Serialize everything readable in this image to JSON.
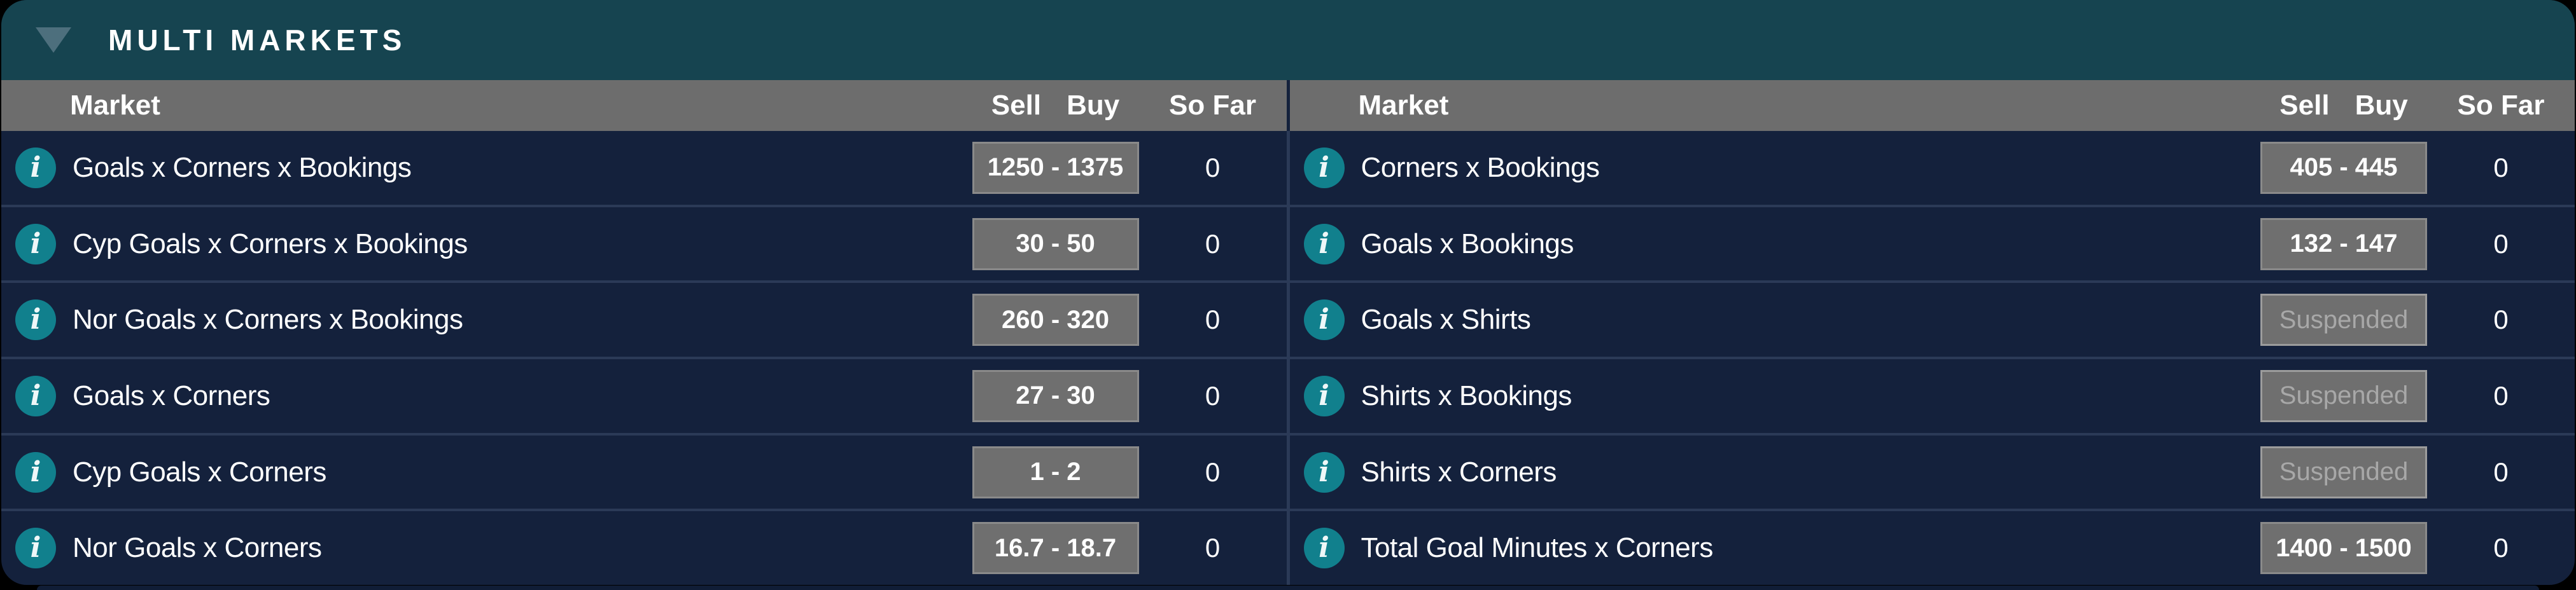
{
  "panel": {
    "title": "MULTI MARKETS"
  },
  "columns": {
    "market": "Market",
    "sell": "Sell",
    "buy": "Buy",
    "so_far": "So Far"
  },
  "info_icon_glyph": "i",
  "tables": [
    {
      "side": "left",
      "rows": [
        {
          "market": "Goals x Corners x Bookings",
          "price": "1250 - 1375",
          "status": "active",
          "so_far": "0"
        },
        {
          "market": "Cyp Goals x Corners x Bookings",
          "price": "30 - 50",
          "status": "active",
          "so_far": "0"
        },
        {
          "market": "Nor Goals x Corners x Bookings",
          "price": "260 - 320",
          "status": "active",
          "so_far": "0"
        },
        {
          "market": "Goals x Corners",
          "price": "27 - 30",
          "status": "active",
          "so_far": "0"
        },
        {
          "market": "Cyp Goals x Corners",
          "price": "1 - 2",
          "status": "active",
          "so_far": "0"
        },
        {
          "market": "Nor Goals x Corners",
          "price": "16.7 - 18.7",
          "status": "active",
          "so_far": "0"
        }
      ]
    },
    {
      "side": "right",
      "rows": [
        {
          "market": "Corners x Bookings",
          "price": "405 - 445",
          "status": "active",
          "so_far": "0"
        },
        {
          "market": "Goals x Bookings",
          "price": "132 - 147",
          "status": "active",
          "so_far": "0"
        },
        {
          "market": "Goals x Shirts",
          "price": "Suspended",
          "status": "suspended",
          "so_far": "0"
        },
        {
          "market": "Shirts x Bookings",
          "price": "Suspended",
          "status": "suspended",
          "so_far": "0"
        },
        {
          "market": "Shirts x Corners",
          "price": "Suspended",
          "status": "suspended",
          "so_far": "0"
        },
        {
          "market": "Total Goal Minutes x Corners",
          "price": "1400 - 1500",
          "status": "active",
          "so_far": "0"
        }
      ]
    }
  ],
  "colors": {
    "page_bg": "#000000",
    "teal_header": "#164450",
    "triangle": "#4d6f7d",
    "col_header_bg": "#6d6d6d",
    "row_bg": "#14213c",
    "divider": "#2b3a57",
    "info_bg": "#11808d",
    "btn_bg": "#6f6f6f",
    "btn_border": "#8a8a8a",
    "suspended_text": "#a8a8a8",
    "suspended_border": "#9c9c9c",
    "next_edge": "#101d36",
    "text": "#ffffff"
  }
}
